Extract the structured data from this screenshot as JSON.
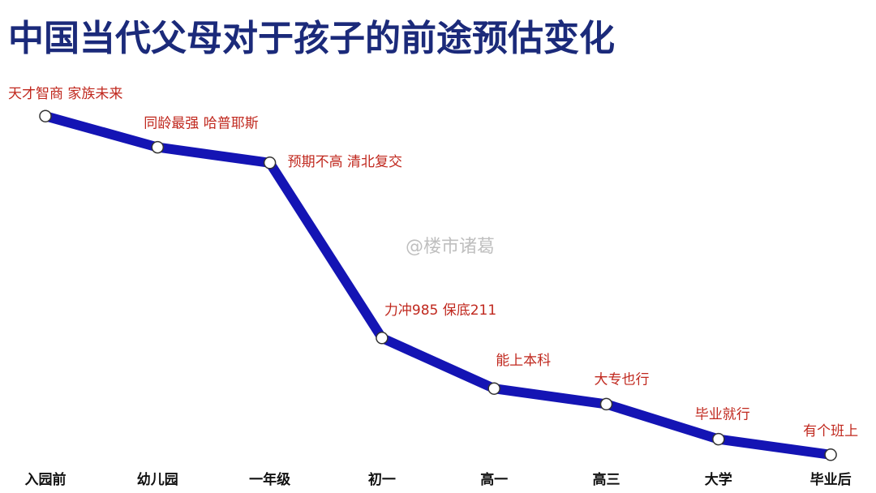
{
  "chart_data": {
    "type": "line",
    "title": "中国当代父母对于孩子的前途预估变化",
    "categories": [
      "入园前",
      "幼儿园",
      "一年级",
      "初一",
      "高一",
      "高三",
      "大学",
      "毕业后"
    ],
    "series": [
      {
        "color": "#1414b4",
        "values": [
          91,
          83,
          79,
          34,
          21,
          17,
          8,
          4
        ]
      }
    ],
    "annotations": [
      "天才智商 家族未来",
      "同龄最强 哈普耶斯",
      "预期不高 清北复交",
      "力冲985 保底211",
      "能上本科",
      "大专也行",
      "毕业就行",
      "有个班上"
    ],
    "annotation_color": "#c0281e",
    "ylim": [
      0,
      100
    ],
    "watermark": "@楼市诸葛"
  }
}
